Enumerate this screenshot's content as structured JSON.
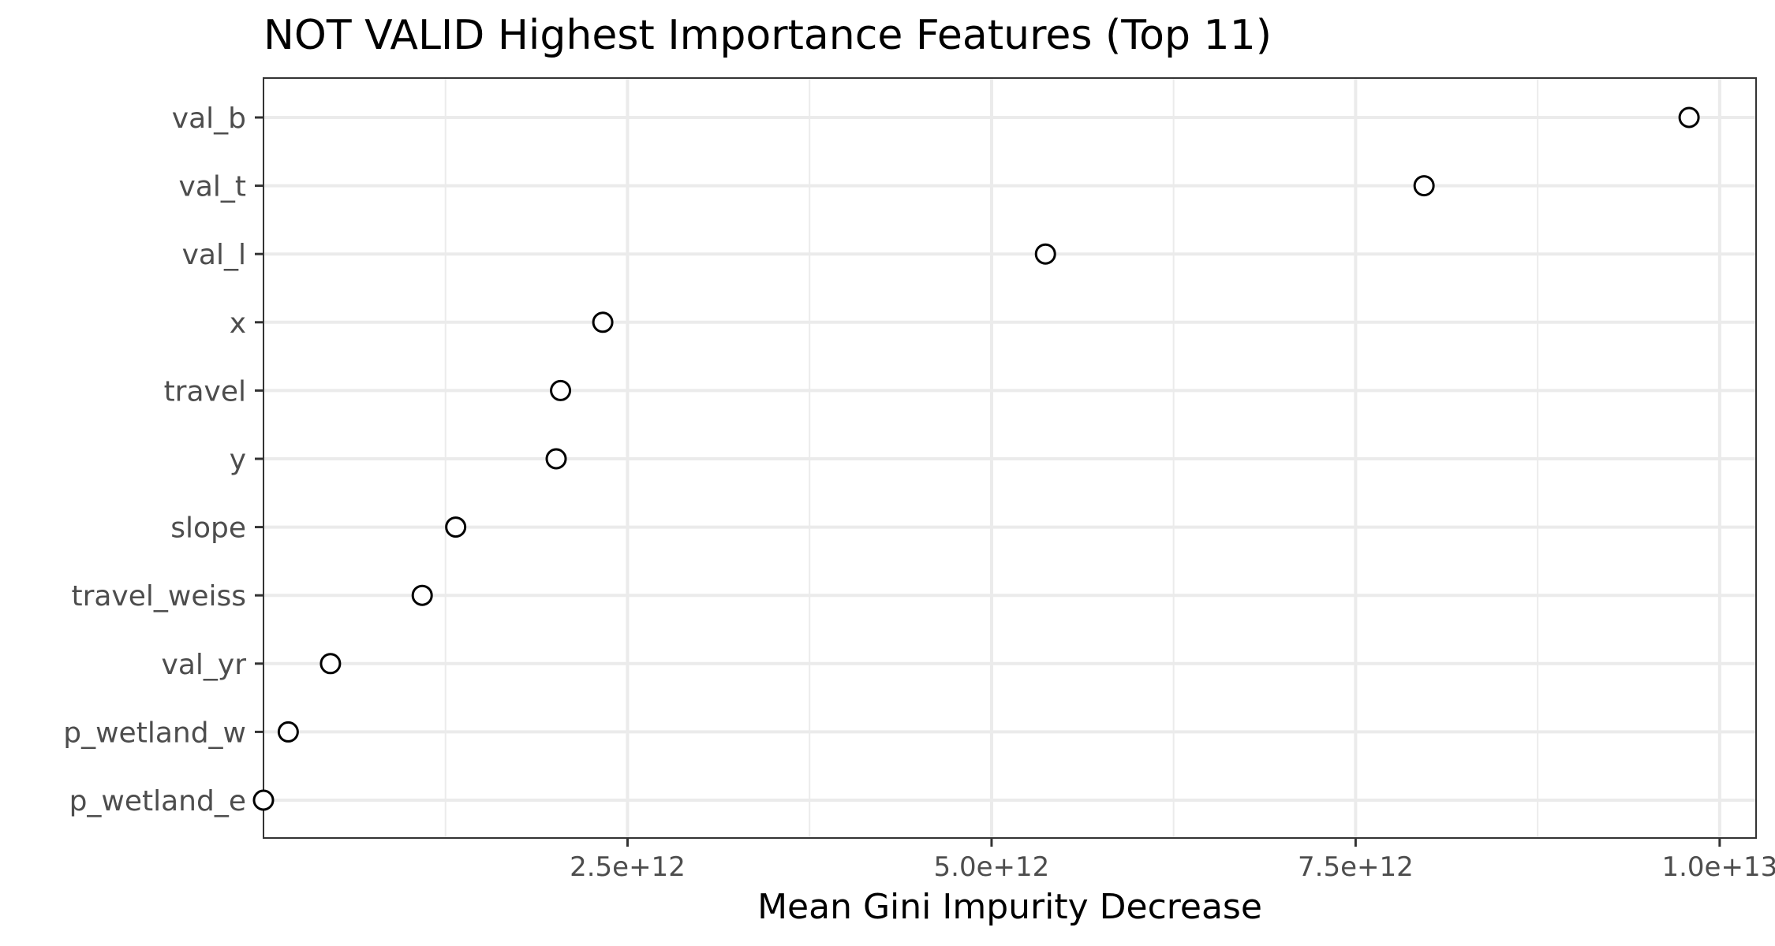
{
  "chart_data": {
    "type": "scatter",
    "title": "NOT VALID Highest Importance Features (Top 11)",
    "xlabel": "Mean Gini Impurity Decrease",
    "ylabel": "",
    "xlim": [
      0,
      10250000000000
    ],
    "x_ticks": [
      2500000000000,
      5000000000000,
      7500000000000,
      10000000000000
    ],
    "x_tick_labels": [
      "2.5e+12",
      "5.0e+12",
      "7.5e+12",
      "1.0e+13"
    ],
    "grid": true,
    "categories": [
      "val_b",
      "val_t",
      "val_l",
      "x",
      "travel",
      "y",
      "slope",
      "travel_weiss",
      "val_yr",
      "p_wetland_w",
      "p_wetland_e"
    ],
    "values": [
      9790000000000,
      7970000000000,
      5370000000000,
      2330000000000,
      2040000000000,
      2010000000000,
      1320000000000,
      1090000000000,
      460000000000,
      170000000000,
      0
    ]
  }
}
